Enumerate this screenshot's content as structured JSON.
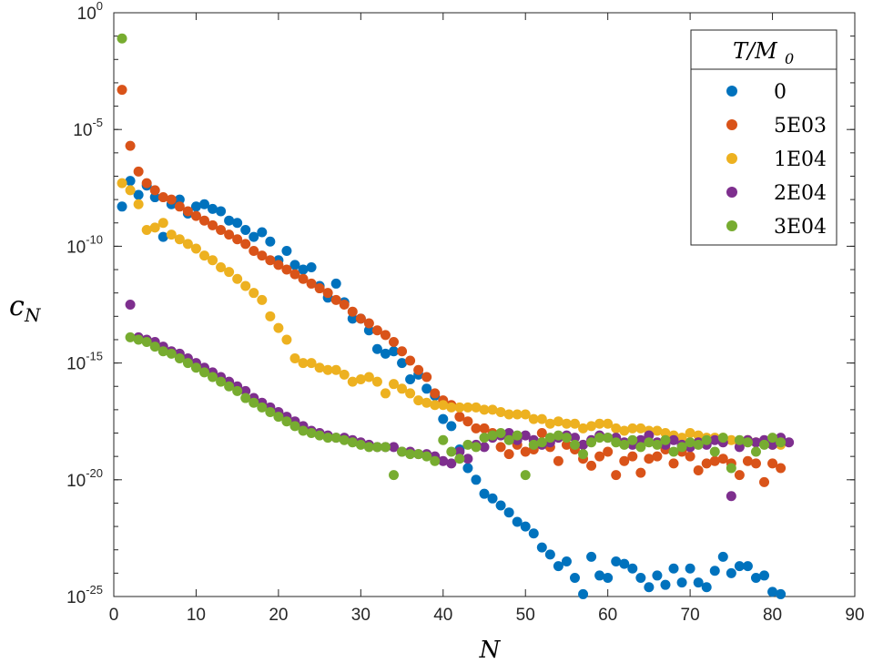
{
  "chart_data": {
    "type": "scatter",
    "xlabel": "N",
    "ylabel": "c",
    "ylabel_sub": "N",
    "xlim": [
      0,
      90
    ],
    "ylim_log10": [
      -25,
      0
    ],
    "x_ticks": [
      0,
      10,
      20,
      30,
      40,
      50,
      60,
      70,
      80,
      90
    ],
    "y_ticks": [
      {
        "base": "10",
        "exp": "0"
      },
      {
        "base": "10",
        "exp": "-5"
      },
      {
        "base": "10",
        "exp": "-10"
      },
      {
        "base": "10",
        "exp": "-15"
      },
      {
        "base": "10",
        "exp": "-20"
      },
      {
        "base": "10",
        "exp": "-25"
      }
    ],
    "legend": {
      "title": "T/M",
      "title_sub": "0",
      "position": "top-right"
    },
    "series": [
      {
        "name": "0",
        "color": "#0072BD",
        "log10_values": [
          -8.3,
          -7.2,
          -7.8,
          -7.4,
          -7.9,
          -9.6,
          -8.2,
          -8.0,
          -8.6,
          -8.3,
          -8.2,
          -8.4,
          -8.5,
          -8.9,
          -9.0,
          -9.3,
          -9.6,
          -9.4,
          -9.8,
          -10.6,
          -10.2,
          -10.8,
          -11.0,
          -10.9,
          -11.7,
          -12.2,
          -11.6,
          -12.4,
          -13.1,
          -13.1,
          -13.6,
          -14.4,
          -14.6,
          -14.5,
          -15.0,
          -15.7,
          -15.5,
          -16.1,
          -16.4,
          -17.4,
          -17.7,
          -18.7,
          -19.5,
          -20.0,
          -20.6,
          -20.8,
          -21.1,
          -21.4,
          -21.8,
          -22.0,
          -22.3,
          -22.9,
          -23.2,
          -23.7,
          -23.5,
          -24.2,
          -24.9,
          -23.3,
          -24.1,
          -24.2,
          -23.5,
          -23.6,
          -23.8,
          -24.2,
          -24.6,
          -24.1,
          -24.5,
          -23.8,
          -24.4,
          -23.8,
          -24.4,
          -24.6,
          -23.9,
          -23.3,
          -24.0,
          -23.7,
          -23.7,
          -24.2,
          -24.1,
          -24.8,
          -24.9
        ],
        "n_start": 1
      },
      {
        "name": "5E03",
        "color": "#D95319",
        "log10_values": [
          -3.3,
          -5.7,
          -6.8,
          -7.3,
          -7.6,
          -7.9,
          -8.0,
          -8.3,
          -8.5,
          -8.7,
          -8.9,
          -9.1,
          -9.3,
          -9.5,
          -9.7,
          -9.9,
          -10.2,
          -10.4,
          -10.6,
          -10.8,
          -11.0,
          -11.2,
          -11.4,
          -11.6,
          -11.8,
          -12.0,
          -12.3,
          -12.5,
          -12.8,
          -13.1,
          -13.3,
          -13.6,
          -13.8,
          -14.1,
          -14.5,
          -14.9,
          -15.3,
          -15.6,
          -16.3,
          -16.6,
          -16.8,
          -17.3,
          -17.5,
          -17.8,
          -17.8,
          -18.0,
          -18.6,
          -18.9,
          -18.5,
          -18.8,
          -18.7,
          -18.0,
          -18.6,
          -19.2,
          -18.5,
          -18.7,
          -19.1,
          -19.4,
          -19.0,
          -18.8,
          -19.8,
          -19.2,
          -19.0,
          -19.7,
          -19.1,
          -19.0,
          -18.7,
          -19.3,
          -18.8,
          -19.0,
          -19.6,
          -19.3,
          -19.2,
          -19.1,
          -19.3,
          -19.8,
          -19.2,
          -19.3,
          -20.1,
          -19.3,
          -19.5
        ],
        "n_start": 1
      },
      {
        "name": "1E04",
        "color": "#EDB120",
        "log10_values": [
          -7.3,
          -7.6,
          -8.2,
          -9.3,
          -9.2,
          -9.0,
          -9.5,
          -9.7,
          -9.9,
          -10.1,
          -10.4,
          -10.6,
          -10.9,
          -11.1,
          -11.4,
          -11.7,
          -12.0,
          -12.3,
          -13.0,
          -13.5,
          -14.0,
          -14.8,
          -15.0,
          -15.0,
          -15.2,
          -15.3,
          -15.3,
          -15.5,
          -15.8,
          -15.7,
          -15.6,
          -15.8,
          -16.3,
          -15.9,
          -16.1,
          -16.3,
          -16.6,
          -16.7,
          -16.8,
          -16.8,
          -16.9,
          -16.9,
          -16.9,
          -16.9,
          -17.0,
          -17.0,
          -17.1,
          -17.2,
          -17.2,
          -17.2,
          -17.4,
          -17.4,
          -17.6,
          -17.5,
          -17.6,
          -17.6,
          -17.8,
          -17.7,
          -17.6,
          -17.6,
          -17.8,
          -17.9,
          -17.8,
          -17.8,
          -17.9,
          -17.9,
          -18.0,
          -18.1,
          -18.2,
          -18.0,
          -18.1,
          -18.2,
          -18.2,
          -18.2,
          -18.3,
          -18.4,
          -18.3,
          -18.4,
          -18.4,
          -18.5,
          -18.5
        ],
        "n_start": 1
      },
      {
        "name": "2E04",
        "color": "#7E2F8E",
        "log10_values": [
          -12.5,
          -13.9,
          -14.0,
          -14.1,
          -14.3,
          -14.5,
          -14.6,
          -14.8,
          -15.0,
          -15.2,
          -15.4,
          -15.6,
          -15.8,
          -16.0,
          -16.2,
          -16.5,
          -16.7,
          -16.9,
          -17.1,
          -17.3,
          -17.5,
          -17.7,
          -17.9,
          -18.0,
          -18.1,
          -18.2,
          -18.2,
          -18.3,
          -18.4,
          -18.5,
          -18.6,
          -18.6,
          -18.6,
          -18.8,
          -18.8,
          -18.9,
          -18.9,
          -19.0,
          -19.2,
          -19.3,
          -18.8,
          -19.1,
          -18.5,
          -18.6,
          -18.2,
          -18.1,
          -18.0,
          -18.3,
          -18.1,
          -18.3,
          -18.5,
          -18.4,
          -18.2,
          -18.1,
          -18.2,
          -18.5,
          -18.3,
          -18.1,
          -18.2,
          -18.2,
          -18.4,
          -18.5,
          -18.3,
          -18.1,
          -18.4,
          -18.5,
          -18.3,
          -18.5,
          -18.6,
          -18.4,
          -18.5,
          -18.3,
          -18.4,
          -20.7,
          -18.6,
          -18.3,
          -18.4,
          -18.3,
          -18.5,
          -18.2,
          -18.4
        ],
        "n_start": 2
      },
      {
        "name": "3E04",
        "color": "#77AC30",
        "log10_values": [
          -1.1,
          -13.9,
          -14.0,
          -14.1,
          -14.3,
          -14.5,
          -14.6,
          -14.8,
          -15.0,
          -15.2,
          -15.4,
          -15.6,
          -15.8,
          -16.0,
          -16.2,
          -16.5,
          -16.7,
          -16.9,
          -17.1,
          -17.3,
          -17.5,
          -17.7,
          -17.9,
          -18.0,
          -18.1,
          -18.2,
          -18.2,
          -18.3,
          -18.4,
          -18.5,
          -18.6,
          -18.6,
          -18.6,
          -19.8,
          -18.8,
          -18.9,
          -18.9,
          -19.0,
          -19.2,
          -18.3,
          -18.8,
          -19.1,
          -18.5,
          -18.6,
          -18.2,
          -18.1,
          -18.0,
          -18.3,
          -18.1,
          -19.8,
          -18.5,
          -18.4,
          -18.2,
          -18.1,
          -18.2,
          -18.5,
          -18.9,
          -18.4,
          -18.2,
          -18.2,
          -18.4,
          -18.5,
          -18.3,
          -18.6,
          -18.4,
          -18.5,
          -18.3,
          -18.8,
          -18.6,
          -18.4,
          -18.5,
          -18.3,
          -18.8,
          -18.2,
          -19.5,
          -18.3,
          -18.4,
          -18.8,
          -18.5,
          -18.2,
          -18.4
        ],
        "n_start": 1
      }
    ]
  }
}
